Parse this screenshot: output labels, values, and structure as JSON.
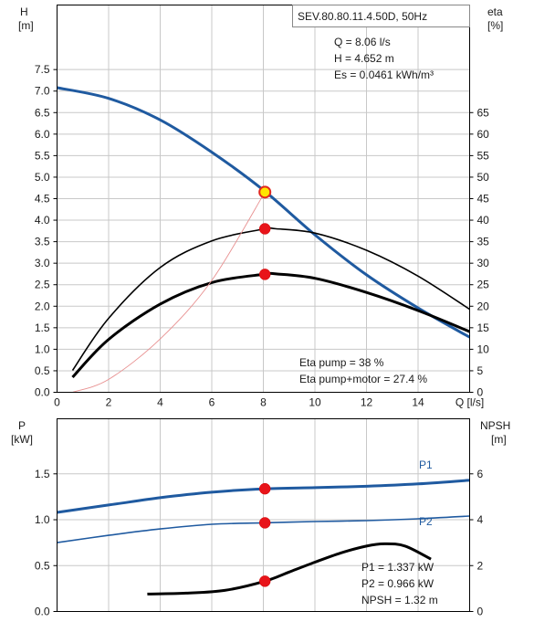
{
  "chart_data": [
    {
      "type": "line",
      "title": "SEV.80.80.11.4.50D, 50Hz",
      "annotations": [
        "Q = 8.06 l/s",
        "H = 4.652 m",
        "Es = 0.0461 kWh/m³"
      ],
      "eta_annotations": [
        "Eta pump = 38 %",
        "Eta pump+motor = 27.4 %"
      ],
      "ylabel_left": [
        "H",
        "[m]"
      ],
      "ylabel_right": [
        "eta",
        "[%]"
      ],
      "xlabel_suffix": "Q [l/s]",
      "xlim": [
        0,
        16
      ],
      "ylim_left": [
        0,
        8
      ],
      "ylim_right": [
        0,
        80
      ],
      "x_ticks": [
        "0",
        "2",
        "4",
        "6",
        "8",
        "10",
        "12",
        "14"
      ],
      "y_ticks_left": [
        "0.0",
        "0.5",
        "1.0",
        "1.5",
        "2.0",
        "2.5",
        "3.0",
        "3.5",
        "4.0",
        "4.5",
        "5.0",
        "5.5",
        "6.0",
        "6.5",
        "7.0",
        "7.5"
      ],
      "y_ticks_right": [
        "0",
        "5",
        "10",
        "15",
        "20",
        "25",
        "30",
        "35",
        "40",
        "45",
        "50",
        "55",
        "60",
        "65"
      ],
      "grid": true,
      "series": [
        {
          "color": "#1f5aa0",
          "axis": "left",
          "x": [
            0,
            2,
            4,
            6,
            8,
            10,
            12,
            14,
            16
          ],
          "y": [
            7.08,
            6.83,
            6.33,
            5.58,
            4.7,
            3.66,
            2.73,
            1.96,
            1.28
          ]
        },
        {
          "color": "#000000",
          "axis": "right",
          "x": [
            0.6,
            2,
            4,
            6,
            8,
            8.5,
            10,
            12,
            14,
            16
          ],
          "y": [
            5.1,
            17.2,
            29,
            35.2,
            37.9,
            38,
            37,
            33,
            27,
            19.3
          ]
        },
        {
          "color": "#000000",
          "axis": "right",
          "x": [
            0.6,
            2,
            4,
            6,
            8,
            8.5,
            10,
            12,
            14,
            16
          ],
          "y": [
            3.5,
            12.3,
            20.5,
            25.5,
            27.4,
            27.5,
            26.5,
            23.2,
            19,
            14.1
          ]
        },
        {
          "color": "#e89090",
          "axis": "left",
          "x": [
            0.6,
            2,
            4,
            6,
            8.06
          ],
          "y": [
            0,
            0.3,
            1.24,
            2.6,
            4.652
          ]
        }
      ],
      "operating_points": [
        {
          "x": 8.06,
          "y": 4.652,
          "axis": "left",
          "style": "yellow"
        },
        {
          "x": 8.06,
          "y": 38,
          "axis": "right",
          "style": "red"
        },
        {
          "x": 8.06,
          "y": 27.4,
          "axis": "right",
          "style": "red"
        }
      ]
    },
    {
      "type": "line",
      "ylabel_left": [
        "P",
        "[kW]"
      ],
      "ylabel_right": [
        "NPSH",
        "[m]"
      ],
      "xlim": [
        0,
        16
      ],
      "ylim_left": [
        0,
        2
      ],
      "ylim_right": [
        0,
        8
      ],
      "y_ticks_left": [
        "0.0",
        "0.5",
        "1.0",
        "1.5"
      ],
      "y_ticks_right": [
        "0",
        "2",
        "4",
        "6"
      ],
      "grid": true,
      "annotations": [
        "P1 = 1.337 kW",
        "P2 = 0.966 kW",
        "NPSH = 1.32 m"
      ],
      "series": [
        {
          "name": "P1",
          "color": "#1f5aa0",
          "axis": "left",
          "x": [
            0,
            2,
            4,
            6,
            8,
            10,
            12,
            14,
            16
          ],
          "y": [
            1.08,
            1.16,
            1.24,
            1.3,
            1.337,
            1.35,
            1.365,
            1.39,
            1.43
          ]
        },
        {
          "name": "P2",
          "color": "#1f5aa0",
          "axis": "left",
          "x": [
            0,
            2,
            4,
            6,
            8,
            10,
            12,
            14,
            16
          ],
          "y": [
            0.75,
            0.83,
            0.9,
            0.95,
            0.966,
            0.98,
            0.99,
            1.01,
            1.04
          ]
        },
        {
          "color": "#000000",
          "axis": "right",
          "x": [
            3.5,
            5,
            6.5,
            8.06,
            9,
            10,
            11,
            12,
            12.7,
            13.5,
            14.5
          ],
          "y": [
            0.76,
            0.8,
            0.92,
            1.32,
            1.72,
            2.15,
            2.55,
            2.85,
            2.95,
            2.85,
            2.28
          ]
        }
      ],
      "operating_points": [
        {
          "x": 8.06,
          "y": 1.337,
          "axis": "left",
          "style": "red"
        },
        {
          "x": 8.06,
          "y": 0.966,
          "axis": "left",
          "style": "red"
        },
        {
          "x": 8.06,
          "y": 1.32,
          "axis": "right",
          "style": "red"
        }
      ]
    }
  ]
}
